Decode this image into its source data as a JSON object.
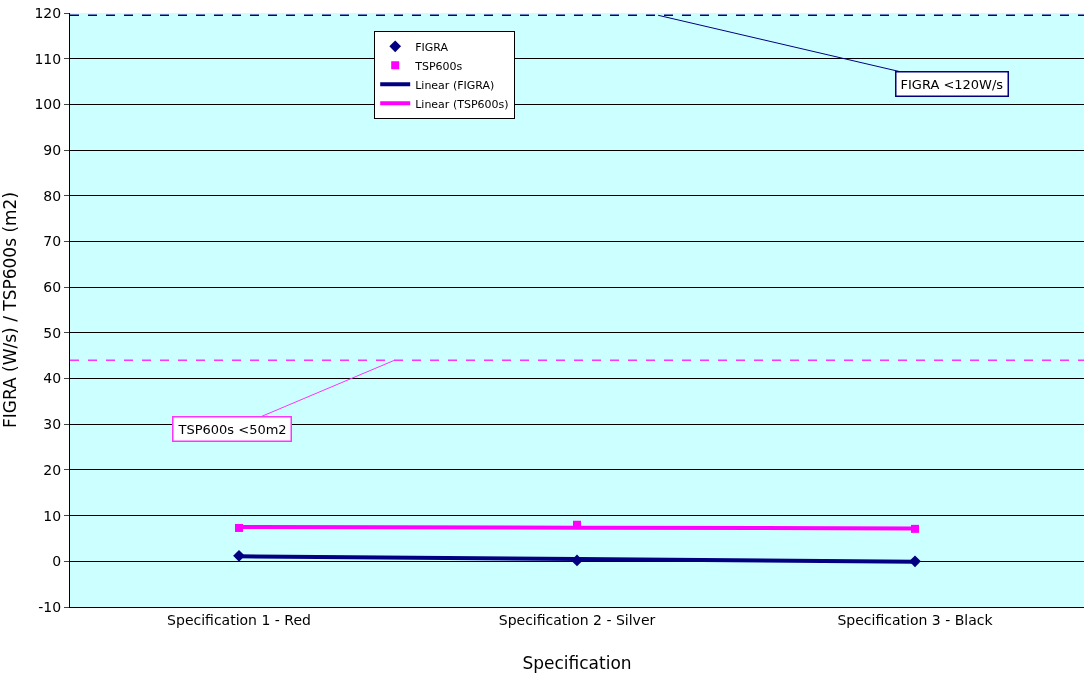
{
  "chart_data": {
    "type": "scatter",
    "xlabel": "Specification",
    "ylabel": "FIGRA (W/s) / TSP600s (m2)",
    "categories": [
      "Specification 1 - Red",
      "Specification 2 - Silver",
      "Specification 3 - Black"
    ],
    "series": [
      {
        "name": "FIGRA",
        "color": "#000080",
        "marker": "diamond",
        "values": [
          1.2,
          0.2,
          0
        ]
      },
      {
        "name": "TSP600s",
        "color": "#ff00ff",
        "marker": "square",
        "values": [
          7.3,
          8,
          7.1
        ]
      },
      {
        "name": "Linear (FIGRA)",
        "type": "line",
        "color": "#000080",
        "marker": "none",
        "line_style": "solid",
        "values": [
          1.1,
          0.5,
          -0.1
        ]
      },
      {
        "name": "Linear (TSP600s)",
        "type": "line",
        "color": "#ff00ff",
        "marker": "none",
        "line_style": "solid",
        "values": [
          7.5,
          7.35,
          7.2
        ]
      }
    ],
    "ref_lines": [
      {
        "axis": "y",
        "value": 119.5,
        "label": "FIGRA <120W/s",
        "color": "#000080",
        "line_style": "dashed"
      },
      {
        "axis": "y",
        "value": 44,
        "label": "TSP600s <50m2",
        "color": "#ff33ff",
        "line_style": "dashed"
      }
    ],
    "ylim": [
      -10,
      120
    ],
    "yticks": [
      -10,
      0,
      10,
      20,
      30,
      40,
      50,
      60,
      70,
      80,
      90,
      100,
      110,
      120
    ],
    "grid": "y",
    "legend": "top"
  }
}
